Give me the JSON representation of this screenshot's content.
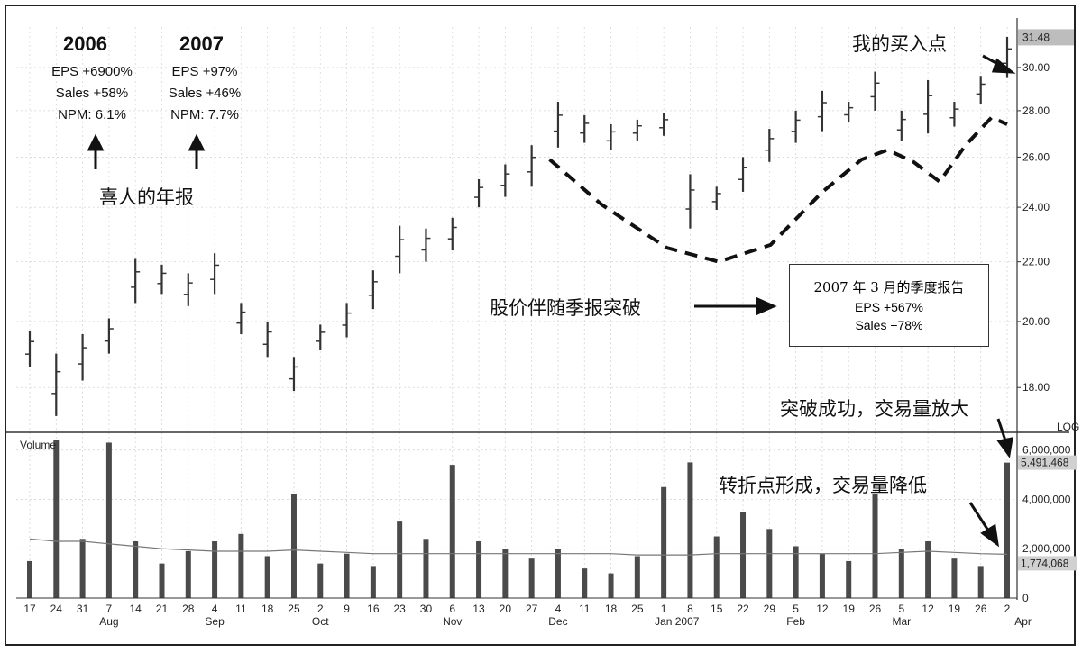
{
  "annotations": {
    "year_2006": "2006",
    "stats_2006": [
      "EPS +6900%",
      "Sales +58%",
      "NPM: 6.1%"
    ],
    "year_2007": "2007",
    "stats_2007": [
      "EPS +97%",
      "Sales +46%",
      "NPM: 7.7%"
    ],
    "good_report": "喜人的年报",
    "buy_point": "我的买入点",
    "breakout_text": "股价伴随季报突破",
    "report_box_title": "2007 年 3 月的季度报告",
    "report_box_eps": "EPS +567%",
    "report_box_sales": "Sales +78%",
    "breakout_volume": "突破成功，交易量放大",
    "pivot_volume": "转折点形成，交易量降低"
  },
  "chart_data": {
    "type": "bar",
    "volume_label": "Volume",
    "log_label": "LOG",
    "price_scale": {
      "ylim": [
        17.0,
        32.0
      ],
      "ticks": [
        "18.00",
        "20.00",
        "22.00",
        "24.00",
        "26.00",
        "28.00",
        "30.00"
      ],
      "current_price": "31.48"
    },
    "volume_scale": {
      "ylim": [
        0,
        6500000
      ],
      "ticks": [
        "0",
        "2,000,000",
        "4,000,000",
        "6,000,000"
      ],
      "current_volume": "5,491,468",
      "avg_volume": "1,774,068"
    },
    "x_day_labels": [
      "17",
      "24",
      "31",
      "7",
      "14",
      "21",
      "28",
      "4",
      "11",
      "18",
      "25",
      "2",
      "9",
      "16",
      "23",
      "30",
      "6",
      "13",
      "20",
      "27",
      "4",
      "11",
      "18",
      "25",
      "1",
      "8",
      "15",
      "22",
      "29",
      "5",
      "12",
      "19",
      "26",
      "5",
      "12",
      "19",
      "26",
      "2"
    ],
    "x_month_labels": [
      "Aug",
      "Sep",
      "Oct",
      "Nov",
      "Dec",
      "Jan 2007",
      "Feb",
      "Mar",
      "Apr"
    ],
    "price_series": [
      {
        "week": "Jul 17",
        "low": 18.6,
        "high": 19.7
      },
      {
        "week": "Jul 24",
        "low": 17.2,
        "high": 19.0
      },
      {
        "week": "Jul 31",
        "low": 18.2,
        "high": 19.6
      },
      {
        "week": "Aug 7",
        "low": 19.0,
        "high": 20.1
      },
      {
        "week": "Aug 14",
        "low": 20.6,
        "high": 22.1
      },
      {
        "week": "Aug 21",
        "low": 20.9,
        "high": 21.9
      },
      {
        "week": "Aug 28",
        "low": 20.5,
        "high": 21.6
      },
      {
        "week": "Sep 4",
        "low": 20.9,
        "high": 22.3
      },
      {
        "week": "Sep 11",
        "low": 19.6,
        "high": 20.6
      },
      {
        "week": "Sep 18",
        "low": 18.9,
        "high": 20.0
      },
      {
        "week": "Sep 25",
        "low": 17.9,
        "high": 18.9
      },
      {
        "week": "Oct 2",
        "low": 19.1,
        "high": 19.9
      },
      {
        "week": "Oct 9",
        "low": 19.5,
        "high": 20.6
      },
      {
        "week": "Oct 16",
        "low": 20.4,
        "high": 21.7
      },
      {
        "week": "Oct 23",
        "low": 21.6,
        "high": 23.3
      },
      {
        "week": "Oct 30",
        "low": 22.0,
        "high": 23.2
      },
      {
        "week": "Nov 6",
        "low": 22.4,
        "high": 23.6
      },
      {
        "week": "Nov 13",
        "low": 24.0,
        "high": 25.1
      },
      {
        "week": "Nov 20",
        "low": 24.4,
        "high": 25.7
      },
      {
        "week": "Nov 27",
        "low": 24.8,
        "high": 26.5
      },
      {
        "week": "Dec 4",
        "low": 26.4,
        "high": 28.4
      },
      {
        "week": "Dec 11",
        "low": 26.6,
        "high": 27.8
      },
      {
        "week": "Dec 18",
        "low": 26.3,
        "high": 27.4
      },
      {
        "week": "Dec 25",
        "low": 26.7,
        "high": 27.6
      },
      {
        "week": "Jan 1",
        "low": 26.9,
        "high": 27.9
      },
      {
        "week": "Jan 8",
        "low": 23.2,
        "high": 25.3
      },
      {
        "week": "Jan 15",
        "low": 23.9,
        "high": 24.8
      },
      {
        "week": "Jan 22",
        "low": 24.6,
        "high": 26.0
      },
      {
        "week": "Jan 29",
        "low": 25.8,
        "high": 27.2
      },
      {
        "week": "Feb 5",
        "low": 26.6,
        "high": 28.0
      },
      {
        "week": "Feb 12",
        "low": 27.1,
        "high": 28.9
      },
      {
        "week": "Feb 19",
        "low": 27.5,
        "high": 28.4
      },
      {
        "week": "Feb 26",
        "low": 28.0,
        "high": 29.8
      },
      {
        "week": "Mar 5",
        "low": 26.7,
        "high": 28.0
      },
      {
        "week": "Mar 12",
        "low": 27.0,
        "high": 29.4
      },
      {
        "week": "Mar 19",
        "low": 27.3,
        "high": 28.4
      },
      {
        "week": "Mar 26",
        "low": 28.3,
        "high": 29.6
      },
      {
        "week": "Apr 2",
        "low": 29.5,
        "high": 31.5
      }
    ],
    "volume_series": [
      {
        "week": "Jul 17",
        "value": 1500000
      },
      {
        "week": "Jul 24",
        "value": 6400000
      },
      {
        "week": "Jul 31",
        "value": 2400000
      },
      {
        "week": "Aug 7",
        "value": 6300000
      },
      {
        "week": "Aug 14",
        "value": 2300000
      },
      {
        "week": "Aug 21",
        "value": 1400000
      },
      {
        "week": "Aug 28",
        "value": 1900000
      },
      {
        "week": "Sep 4",
        "value": 2300000
      },
      {
        "week": "Sep 11",
        "value": 2600000
      },
      {
        "week": "Sep 18",
        "value": 1700000
      },
      {
        "week": "Sep 25",
        "value": 4200000
      },
      {
        "week": "Oct 2",
        "value": 1400000
      },
      {
        "week": "Oct 9",
        "value": 1800000
      },
      {
        "week": "Oct 16",
        "value": 1300000
      },
      {
        "week": "Oct 23",
        "value": 3100000
      },
      {
        "week": "Oct 30",
        "value": 2400000
      },
      {
        "week": "Nov 6",
        "value": 5400000
      },
      {
        "week": "Nov 13",
        "value": 2300000
      },
      {
        "week": "Nov 20",
        "value": 2000000
      },
      {
        "week": "Nov 27",
        "value": 1600000
      },
      {
        "week": "Dec 4",
        "value": 2000000
      },
      {
        "week": "Dec 11",
        "value": 1200000
      },
      {
        "week": "Dec 18",
        "value": 1000000
      },
      {
        "week": "Dec 25",
        "value": 1700000
      },
      {
        "week": "Jan 1",
        "value": 4500000
      },
      {
        "week": "Jan 8",
        "value": 5500000
      },
      {
        "week": "Jan 15",
        "value": 2500000
      },
      {
        "week": "Jan 22",
        "value": 3500000
      },
      {
        "week": "Jan 29",
        "value": 2800000
      },
      {
        "week": "Feb 5",
        "value": 2100000
      },
      {
        "week": "Feb 12",
        "value": 1800000
      },
      {
        "week": "Feb 19",
        "value": 1500000
      },
      {
        "week": "Feb 26",
        "value": 4200000
      },
      {
        "week": "Mar 5",
        "value": 2000000
      },
      {
        "week": "Mar 12",
        "value": 2300000
      },
      {
        "week": "Mar 19",
        "value": 1600000
      },
      {
        "week": "Mar 26",
        "value": 1300000
      },
      {
        "week": "Apr 2",
        "value": 5491468
      }
    ],
    "volume_avg_series": [
      2400000,
      2300000,
      2300000,
      2200000,
      2100000,
      2000000,
      1950000,
      1900000,
      1900000,
      1900000,
      1950000,
      1900000,
      1850000,
      1800000,
      1800000,
      1800000,
      1800000,
      1800000,
      1800000,
      1800000,
      1800000,
      1800000,
      1800000,
      1750000,
      1750000,
      1750000,
      1800000,
      1800000,
      1800000,
      1800000,
      1800000,
      1800000,
      1800000,
      1850000,
      1900000,
      1850000,
      1800000,
      1774068
    ],
    "pattern_line": {
      "style": "dashed",
      "description_from_labels": "cup then handle"
    }
  }
}
